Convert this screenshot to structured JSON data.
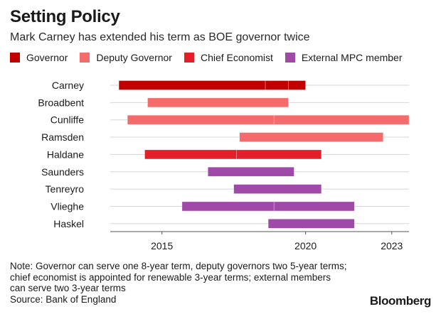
{
  "header": {
    "title": "Setting Policy",
    "subtitle": "Mark Carney has extended his term as BOE governor twice"
  },
  "legend": [
    {
      "label": "Governor",
      "color": "#c00000"
    },
    {
      "label": "Deputy Governor",
      "color": "#f56a6a"
    },
    {
      "label": "Chief Economist",
      "color": "#e3202a"
    },
    {
      "label": "External MPC member",
      "color": "#9f49a8"
    }
  ],
  "chart_data": {
    "type": "bar",
    "orientation": "horizontal-timeline",
    "categories": [
      "Carney",
      "Broadbent",
      "Cunliffe",
      "Ramsden",
      "Haldane",
      "Saunders",
      "Tenreyro",
      "Vlieghe",
      "Haskel"
    ],
    "x_ticks": [
      "2015",
      "2020",
      "2023"
    ],
    "xlim": [
      2013.2,
      2023.6
    ],
    "grid": true,
    "legend_position": "top",
    "series": [
      {
        "name": "Governor",
        "color": "#c00000",
        "segments": [
          {
            "category": "Carney",
            "start": 2013.5,
            "end": 2018.6
          },
          {
            "category": "Carney",
            "start": 2018.6,
            "end": 2019.4
          },
          {
            "category": "Carney",
            "start": 2019.4,
            "end": 2020.0
          }
        ]
      },
      {
        "name": "Deputy Governor",
        "color": "#f56a6a",
        "segments": [
          {
            "category": "Broadbent",
            "start": 2014.5,
            "end": 2019.4
          },
          {
            "category": "Cunliffe",
            "start": 2013.8,
            "end": 2018.9
          },
          {
            "category": "Cunliffe",
            "start": 2018.9,
            "end": 2023.6
          },
          {
            "category": "Ramsden",
            "start": 2017.7,
            "end": 2022.7
          }
        ]
      },
      {
        "name": "Chief Economist",
        "color": "#e3202a",
        "segments": [
          {
            "category": "Haldane",
            "start": 2014.4,
            "end": 2017.6
          },
          {
            "category": "Haldane",
            "start": 2017.6,
            "end": 2020.55
          }
        ]
      },
      {
        "name": "External MPC member",
        "color": "#9f49a8",
        "segments": [
          {
            "category": "Saunders",
            "start": 2016.6,
            "end": 2019.6
          },
          {
            "category": "Tenreyro",
            "start": 2017.5,
            "end": 2020.55
          },
          {
            "category": "Vlieghe",
            "start": 2015.7,
            "end": 2018.9
          },
          {
            "category": "Vlieghe",
            "start": 2018.9,
            "end": 2021.7
          },
          {
            "category": "Haskel",
            "start": 2018.7,
            "end": 2021.7
          }
        ]
      }
    ]
  },
  "notes": [
    "Note: Governor can serve one 8-year term, deputy governors two 5-year terms;",
    "chief economist is appointed for renewable 3-year terms; external members",
    "can serve two 3-year terms",
    "Source: Bank of England"
  ],
  "brand": "Bloomberg"
}
